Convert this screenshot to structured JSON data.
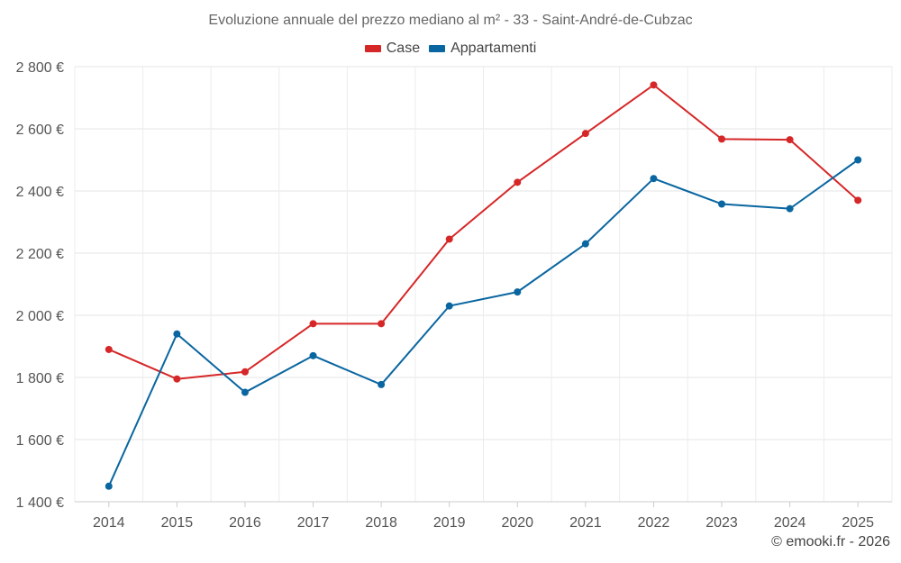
{
  "chart_data": {
    "type": "line",
    "title": "Evoluzione annuale del prezzo mediano al m² - 33 - Saint-André-de-Cubzac",
    "xlabel": "",
    "ylabel": "",
    "categories": [
      "2014",
      "2015",
      "2016",
      "2017",
      "2018",
      "2019",
      "2020",
      "2021",
      "2022",
      "2023",
      "2024",
      "2025"
    ],
    "series": [
      {
        "name": "Case",
        "color": "#d62728",
        "values": [
          1890,
          1795,
          1818,
          1973,
          1973,
          2245,
          2428,
          2585,
          2741,
          2567,
          2565,
          2370
        ]
      },
      {
        "name": "Appartamenti",
        "color": "#0a66a0",
        "values": [
          1450,
          1940,
          1752,
          1870,
          1777,
          2030,
          2075,
          2230,
          2440,
          2358,
          2343,
          2500
        ]
      }
    ],
    "ylim": [
      1400,
      2800
    ],
    "yticks": [
      1400,
      1600,
      1800,
      2000,
      2200,
      2400,
      2600,
      2800
    ],
    "ytick_labels": [
      "1 400 €",
      "1 600 €",
      "1 800 €",
      "2 000 €",
      "2 200 €",
      "2 400 €",
      "2 600 €",
      "2 800 €"
    ],
    "grid": true,
    "legend_position": "top-center"
  },
  "footer": {
    "credit": "© emooki.fr - 2026"
  }
}
